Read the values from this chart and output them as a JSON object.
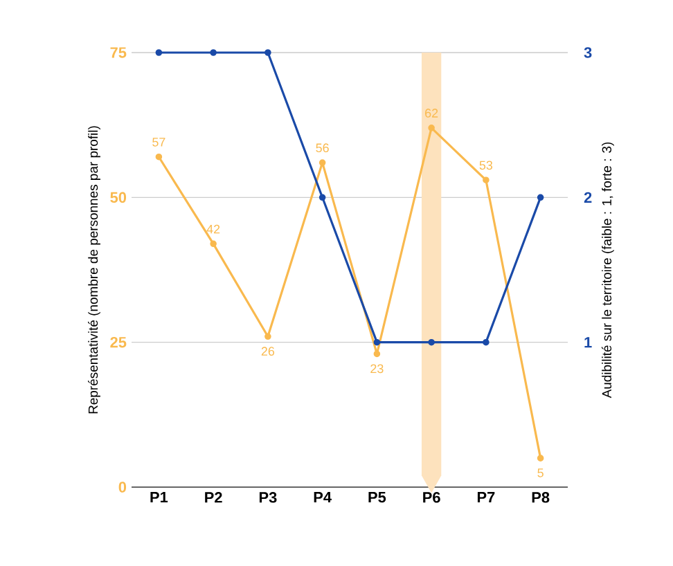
{
  "chart_data": {
    "type": "line",
    "xlabel": null,
    "ylabel": "Représentativité (nombre de personnes par profil)",
    "y2label": "Audibilité sur le territoire (faible : 1, forte : 3)",
    "categories": [
      "P1",
      "P2",
      "P3",
      "P4",
      "P5",
      "P6",
      "P7",
      "P8"
    ],
    "series": [
      {
        "color": "#f9b94e",
        "values": [
          57,
          42,
          26,
          56,
          23,
          62,
          53,
          5
        ],
        "data_labels": true
      },
      {
        "color": "#1a4aa8",
        "values": [
          3,
          3,
          3,
          2,
          1,
          1,
          1,
          2
        ],
        "axis": "y2"
      }
    ],
    "ylim": [
      0,
      75
    ],
    "yticks": [
      0,
      25,
      50,
      75
    ],
    "y2lim": [
      0,
      3
    ],
    "y2ticks": [
      1,
      2,
      3
    ],
    "bands": [
      {
        "axis": "x",
        "from": "P6",
        "to": "P6",
        "color": "#fde2bd"
      }
    ],
    "grid": "y",
    "marker": "circle",
    "line_style": "solid",
    "legend": false
  }
}
